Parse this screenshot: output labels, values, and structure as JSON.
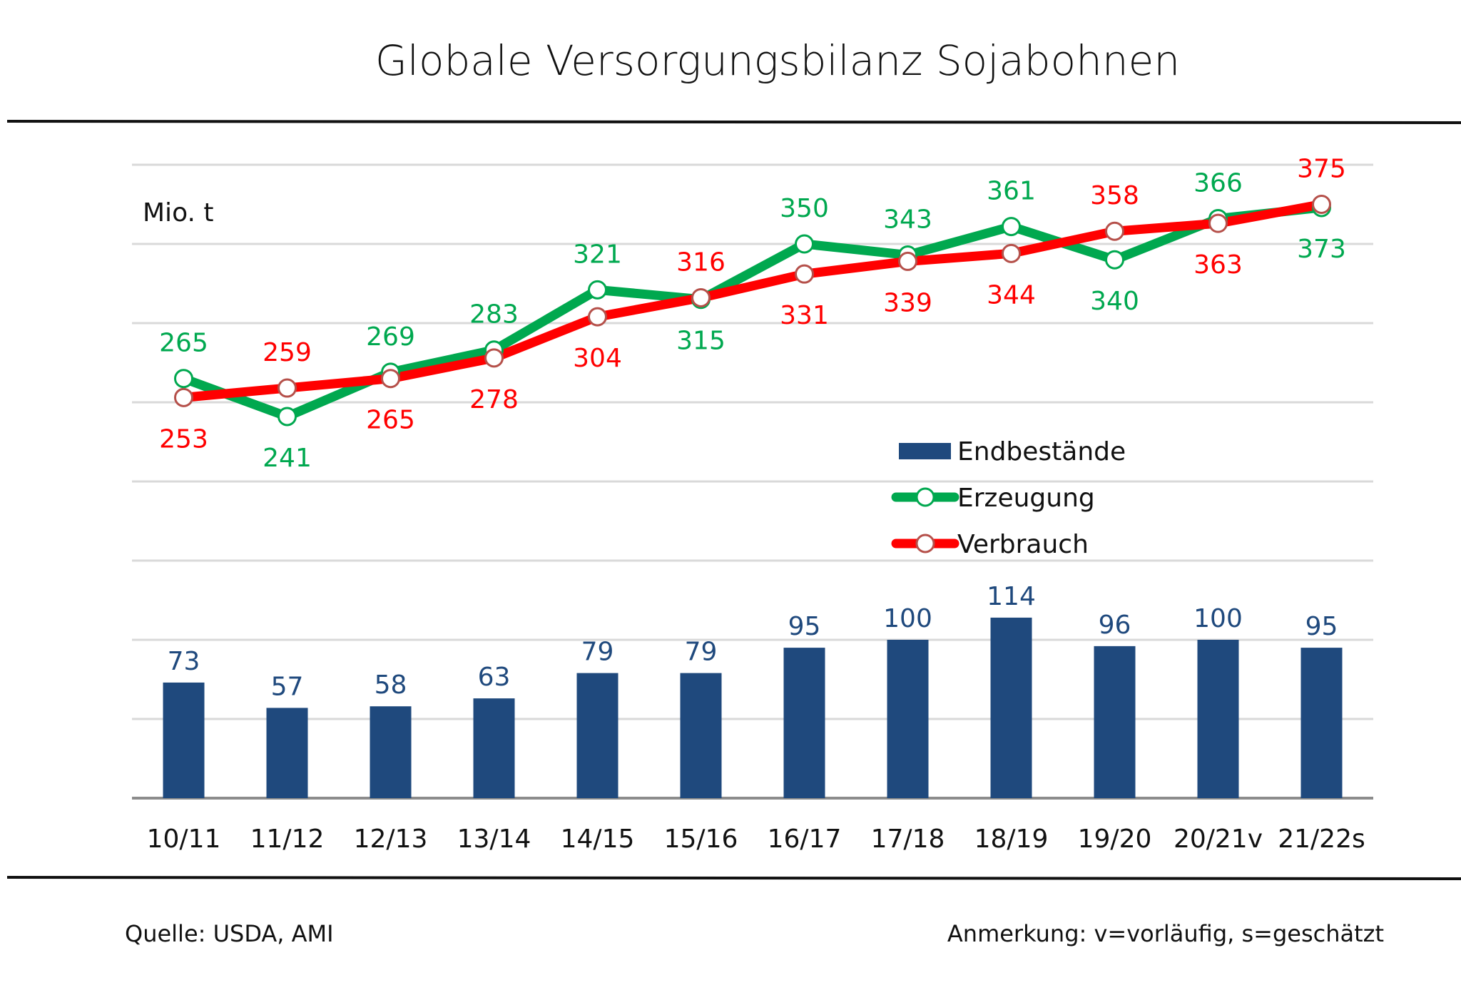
{
  "chart_data": {
    "type": "bar+line",
    "title": "Globale Versorgungsbilanz Sojabohnen",
    "ylabel": "Mio. t",
    "xlabel": "",
    "ylim": [
      0,
      400
    ],
    "ytick_step": 50,
    "grid": true,
    "legend_placement": "center-right",
    "categories": [
      "10/11",
      "11/12",
      "12/13",
      "13/14",
      "14/15",
      "15/16",
      "16/17",
      "17/18",
      "18/19",
      "19/20",
      "20/21v",
      "21/22s"
    ],
    "series": [
      {
        "name": "Endbestände",
        "type": "bar",
        "color": "#1f497d",
        "label_color": "#1f497d",
        "values": [
          73,
          57,
          58,
          63,
          79,
          79,
          95,
          100,
          114,
          96,
          100,
          95
        ]
      },
      {
        "name": "Erzeugung",
        "type": "line",
        "color": "#00a84f",
        "marker_edge": "#00a84f",
        "label_color": "#00a84f",
        "values": [
          265,
          241,
          269,
          283,
          321,
          315,
          350,
          343,
          361,
          340,
          366,
          373
        ],
        "label_pos": [
          "above",
          "below",
          "above",
          "above",
          "above",
          "below",
          "above",
          "above",
          "above",
          "below",
          "above",
          "below"
        ]
      },
      {
        "name": "Verbrauch",
        "type": "line",
        "color": "#ff0000",
        "marker_edge": "#b5504a",
        "label_color": "#ff0000",
        "values": [
          253,
          259,
          265,
          278,
          304,
          316,
          331,
          339,
          344,
          358,
          363,
          375
        ],
        "label_pos": [
          "below",
          "above",
          "below",
          "below",
          "below",
          "above",
          "below",
          "below",
          "below",
          "above",
          "below",
          "above"
        ]
      }
    ]
  },
  "footer": {
    "source": "Quelle: USDA, AMI",
    "note": "Anmerkung: v=vorläufig, s=geschätzt"
  }
}
